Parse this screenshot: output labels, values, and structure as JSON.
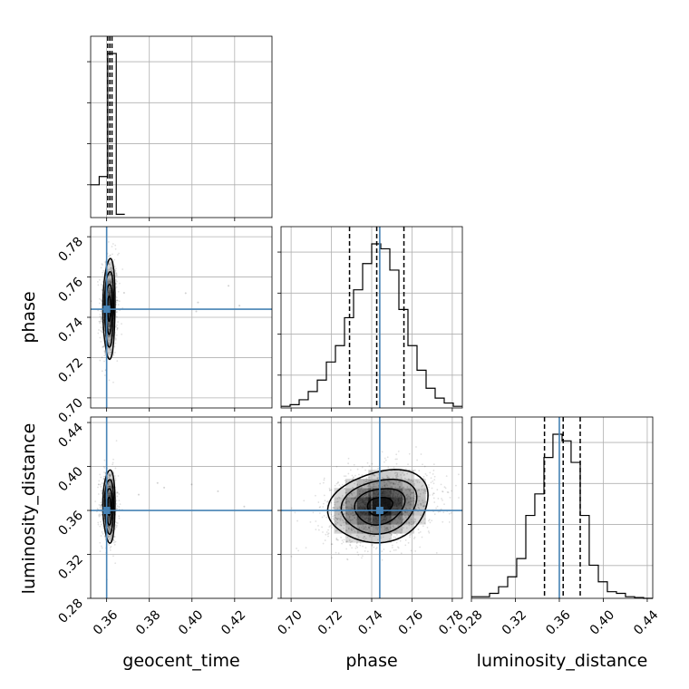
{
  "chart_data": {
    "type": "corner",
    "parameters": [
      "geocent_time",
      "phase",
      "luminosity_distance"
    ],
    "truths": {
      "geocent_time": 0.36,
      "phase": 0.744,
      "luminosity_distance": 0.36
    },
    "ranges": {
      "geocent_time": [
        0.3525,
        0.4375
      ],
      "phase": [
        0.695,
        0.785
      ],
      "luminosity_distance": [
        0.28,
        0.445
      ]
    },
    "ticks": {
      "geocent_time": [
        "0.36",
        "0.38",
        "0.40",
        "0.42"
      ],
      "phase": [
        "0.70",
        "0.72",
        "0.74",
        "0.76",
        "0.78"
      ],
      "luminosity_distance": [
        "0.28",
        "0.32",
        "0.36",
        "0.40",
        "0.44"
      ]
    },
    "quantiles": {
      "geocent_time": [
        0.3605,
        0.3615,
        0.3625
      ],
      "phase": [
        0.729,
        0.7425,
        0.756
      ],
      "luminosity_distance": [
        0.3465,
        0.3635,
        0.379
      ]
    },
    "histograms": {
      "geocent_time": {
        "edges": [
          0.3525,
          0.3565,
          0.3605,
          0.3645,
          0.3685
        ],
        "counts": [
          0.2,
          0.25,
          1.0,
          0.02
        ]
      },
      "phase": {
        "edges": [
          0.695,
          0.6995,
          0.704,
          0.7085,
          0.713,
          0.7175,
          0.722,
          0.7265,
          0.731,
          0.7355,
          0.74,
          0.7445,
          0.749,
          0.7535,
          0.758,
          0.7625,
          0.767,
          0.7715,
          0.776,
          0.7805,
          0.785
        ],
        "counts": [
          0.01,
          0.02,
          0.05,
          0.1,
          0.17,
          0.28,
          0.38,
          0.55,
          0.72,
          0.88,
          1.0,
          0.97,
          0.84,
          0.6,
          0.38,
          0.23,
          0.12,
          0.06,
          0.03,
          0.01
        ]
      },
      "luminosity_distance": {
        "edges": [
          0.28,
          0.2882,
          0.2965,
          0.3047,
          0.313,
          0.3212,
          0.3295,
          0.3377,
          0.346,
          0.3542,
          0.3625,
          0.3707,
          0.379,
          0.3872,
          0.3955,
          0.4037,
          0.412,
          0.4202,
          0.4285,
          0.4367,
          0.445
        ],
        "counts": [
          0.01,
          0.01,
          0.03,
          0.07,
          0.13,
          0.24,
          0.5,
          0.63,
          0.85,
          0.99,
          0.95,
          0.82,
          0.5,
          0.2,
          0.1,
          0.04,
          0.03,
          0.01,
          0.005,
          0.0
        ]
      }
    },
    "density_2d": {
      "geocent_time_vs_phase": {
        "center": [
          0.3612,
          0.7445
        ],
        "sigma": [
          0.0013,
          0.0124
        ],
        "rho": 0.05
      },
      "geocent_time_vs_luminosity_distance": {
        "center": [
          0.3612,
          0.364
        ],
        "sigma": [
          0.0013,
          0.0165
        ],
        "rho": 0.0
      },
      "phase_vs_luminosity_distance": {
        "center": [
          0.744,
          0.364
        ],
        "sigma": [
          0.0124,
          0.0165
        ],
        "rho": 0.18
      }
    },
    "contour_levels_sigma": [
      0.5,
      1.0,
      1.5,
      2.0
    ]
  }
}
